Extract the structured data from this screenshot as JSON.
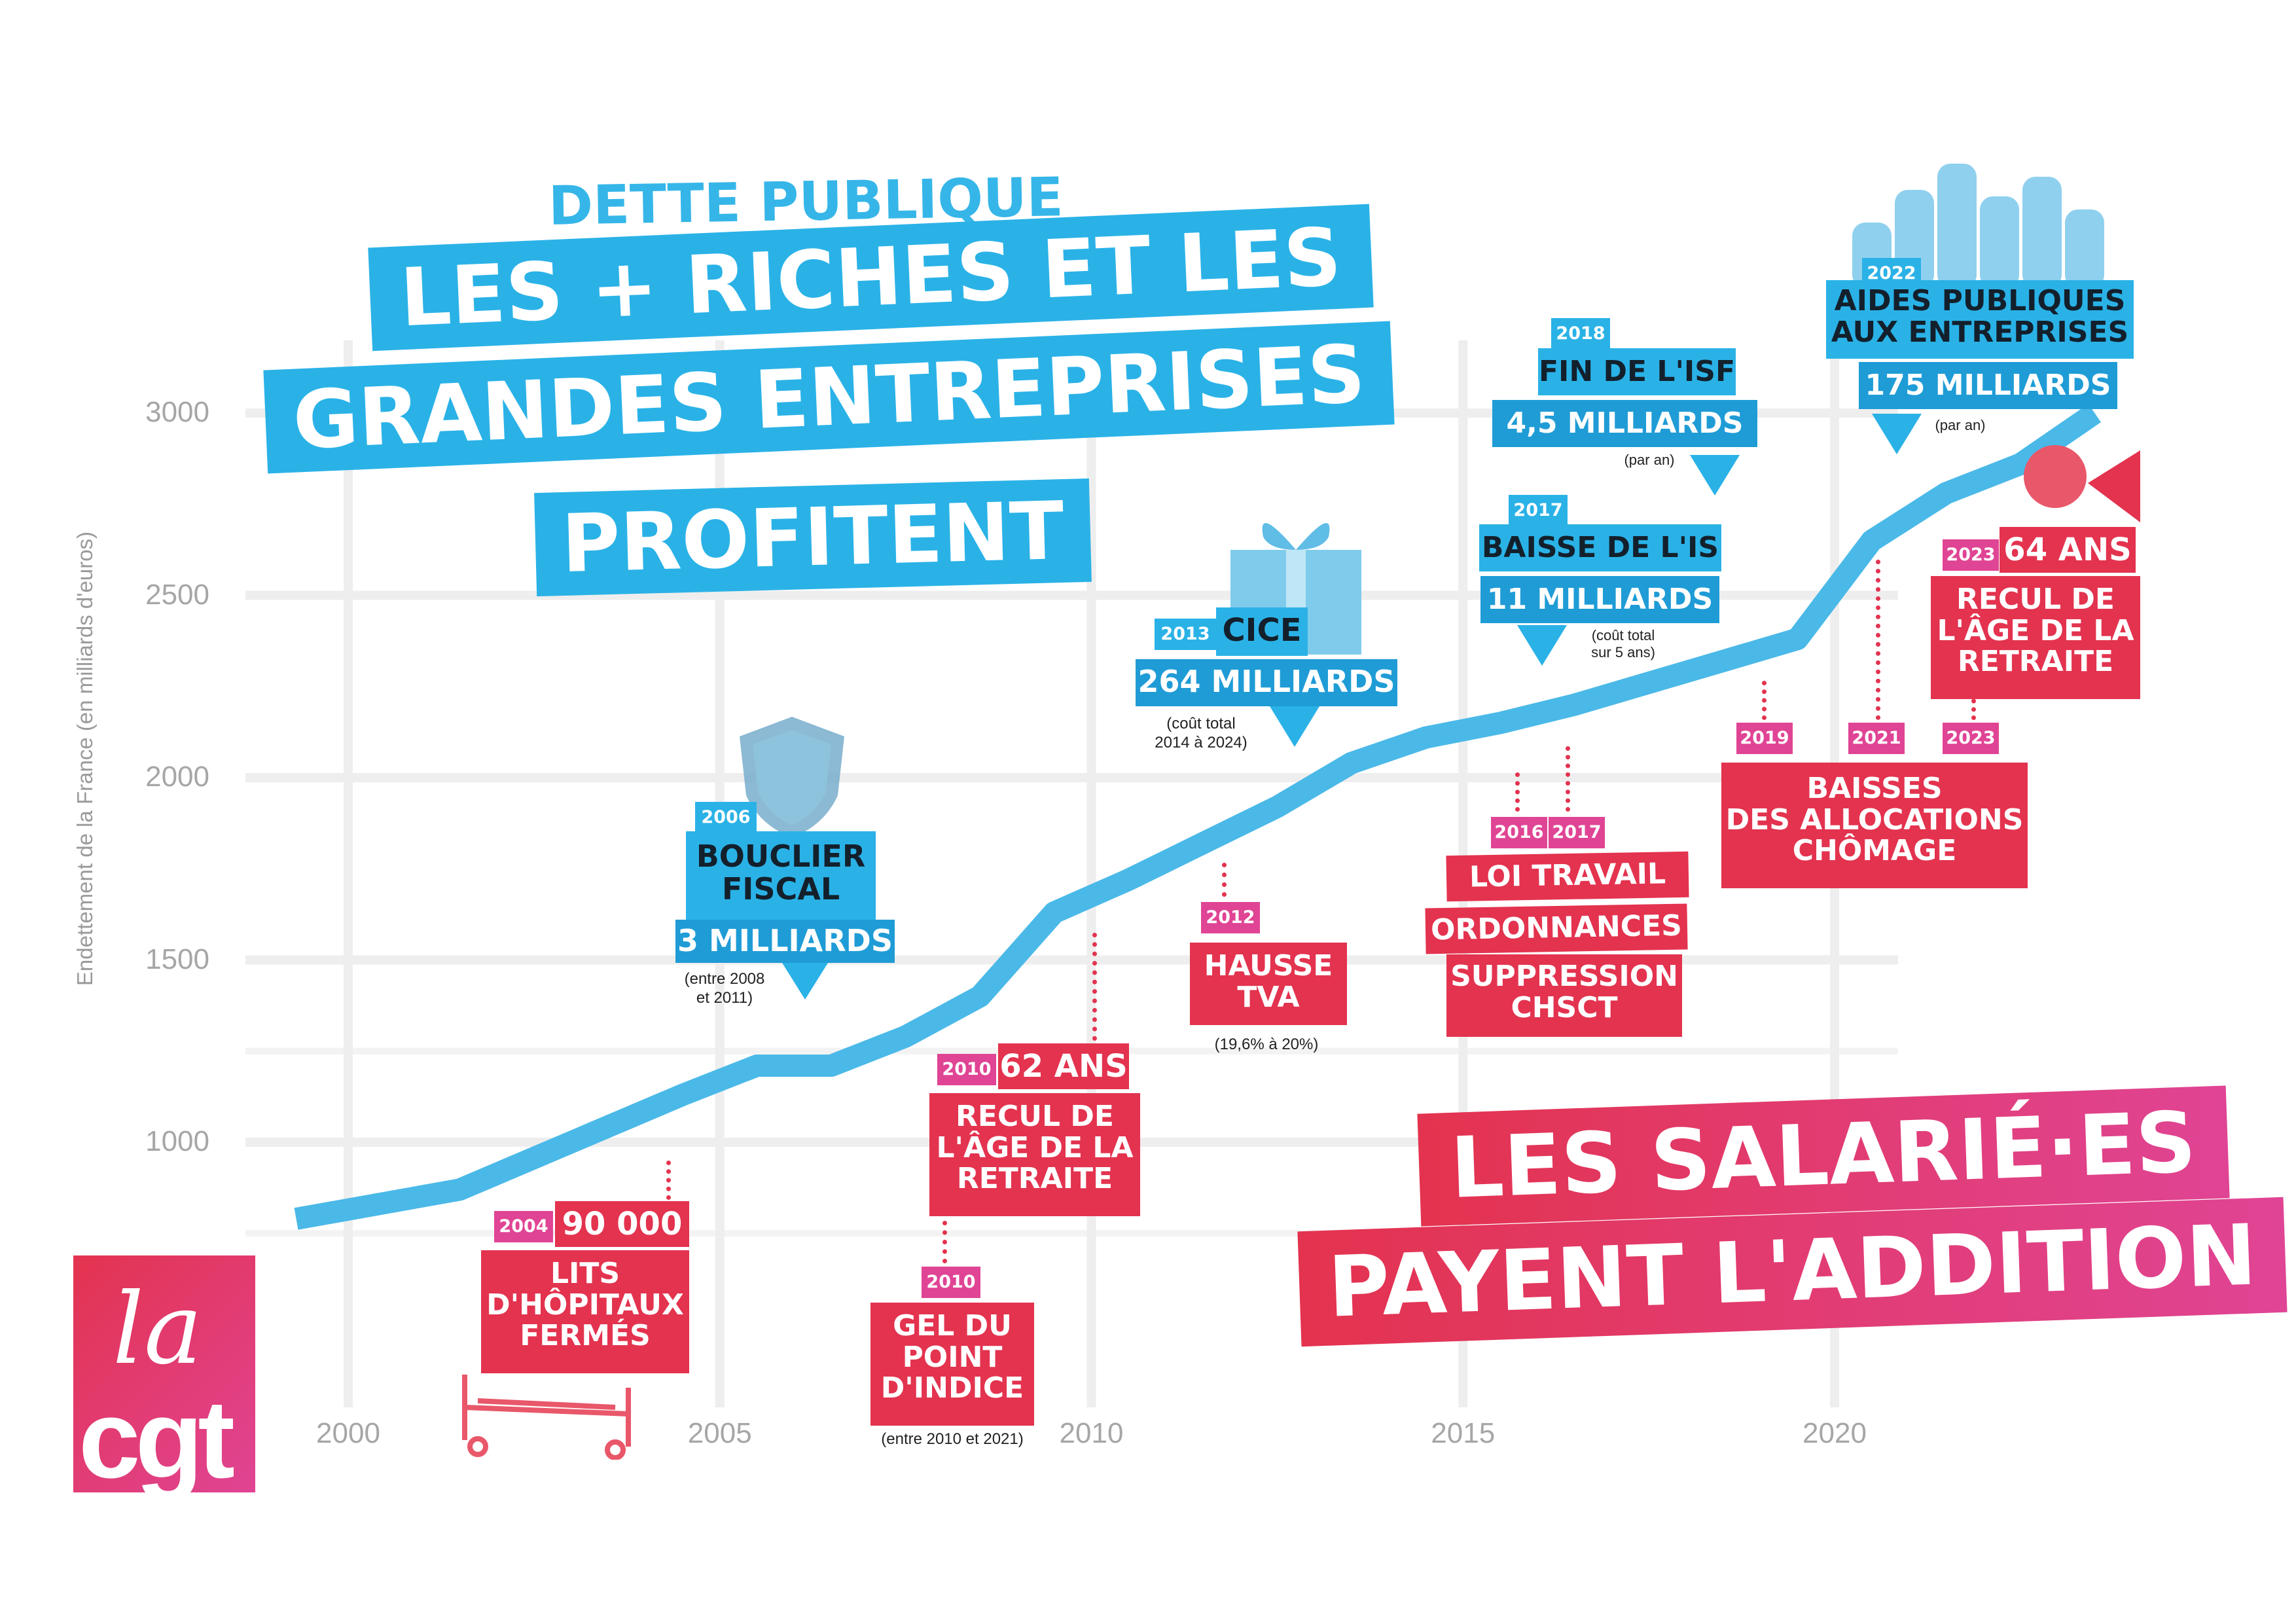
{
  "chart_data": {
    "type": "line",
    "title": "DETTE PUBLIQUE",
    "ylabel": "Endettement de la France (en milliards d'euros)",
    "xlabel": "",
    "ylim": [
      500,
      3300
    ],
    "xlim": [
      1998.5,
      2025
    ],
    "y_ticks": [
      "1000",
      "1500",
      "2000",
      "2500",
      "3000"
    ],
    "x_ticks": [
      "2000",
      "2005",
      "2010",
      "2015",
      "2020"
    ],
    "x": [
      1999.3,
      2001.5,
      2003,
      2004.5,
      2005.5,
      2006.5,
      2007.5,
      2008.5,
      2009.5,
      2010.5,
      2011.5,
      2012.5,
      2013.5,
      2014.5,
      2015.5,
      2016.5,
      2017.5,
      2018.5,
      2019.5,
      2020.5,
      2021.5,
      2022.5,
      2023.5
    ],
    "values": [
      790,
      870,
      1000,
      1130,
      1210,
      1210,
      1290,
      1400,
      1630,
      1720,
      1820,
      1920,
      2040,
      2110,
      2150,
      2200,
      2260,
      2320,
      2380,
      2650,
      2780,
      2860,
      3000
    ],
    "color": "#4ab9e8"
  },
  "colors": {
    "blue": "#2ab2e7",
    "red": "#e3334f",
    "pink": "#e04494"
  },
  "headline": {
    "kicker": "DETTE PUBLIQUE",
    "line1": "LES + RICHES ET LES",
    "line2": "GRANDES ENTREPRISES",
    "line3": "PROFITENT"
  },
  "footer_headline": {
    "line1": "LES SALARIÉ·ES",
    "line2": "PAYENT L'ADDITION"
  },
  "logo": {
    "top": "la",
    "bottom": "cgt"
  },
  "annotations": {
    "bouclier": {
      "year": "2006",
      "label1": "BOUCLIER",
      "label2": "FISCAL",
      "amount": "3 MILLIARDS",
      "note1": "(entre 2008",
      "note2": "et 2011)",
      "icon": "shield-icon"
    },
    "cice": {
      "year": "2013",
      "label": "CICE",
      "amount": "264 MILLIARDS",
      "note1": "(coût total",
      "note2": "2014 à 2024)",
      "icon": "gift-icon"
    },
    "is": {
      "year": "2017",
      "label": "BAISSE DE L'IS",
      "amount": "11 MILLIARDS",
      "note1": "(coût total",
      "note2": "sur 5 ans)"
    },
    "isf": {
      "year": "2018",
      "label": "FIN DE L'ISF",
      "amount": "4,5 MILLIARDS",
      "note": "(par an)"
    },
    "aides": {
      "year": "2022",
      "label1": "AIDES PUBLIQUES",
      "label2": "AUX ENTREPRISES",
      "amount": "175 MILLIARDS",
      "note": "(par an)",
      "icon": "coins-icon"
    },
    "hopitaux": {
      "year": "2004",
      "amount": "90 000",
      "label1": "LITS",
      "label2": "D'HÔPITAUX",
      "label3": "FERMÉS",
      "icon": "hospital-bed-icon"
    },
    "retraite2010": {
      "year": "2010",
      "amount": "62 ANS",
      "label1": "RECUL DE",
      "label2": "L'ÂGE DE LA",
      "label3": "RETRAITE"
    },
    "gel": {
      "year": "2010",
      "label1": "GEL DU",
      "label2": "POINT",
      "label3": "D'INDICE",
      "note": "(entre 2010 et 2021)"
    },
    "tva": {
      "year": "2012",
      "label1": "HAUSSE",
      "label2": "TVA",
      "note": "(19,6% à 20%)"
    },
    "loi": {
      "year1": "2016",
      "year2": "2017",
      "label1": "LOI TRAVAIL",
      "label2": "ORDONNANCES",
      "label3": "SUPPRESSION",
      "label4": "CHSCT"
    },
    "chomage": {
      "year1": "2019",
      "year2": "2021",
      "year3": "2023",
      "label1": "BAISSES",
      "label2": "DES ALLOCATIONS",
      "label3": "CHÔMAGE"
    },
    "retraite2023": {
      "year": "2023",
      "amount": "64 ANS",
      "label1": "RECUL DE",
      "label2": "L'ÂGE DE LA",
      "label3": "RETRAITE",
      "icon": "megaphone-icon"
    }
  }
}
